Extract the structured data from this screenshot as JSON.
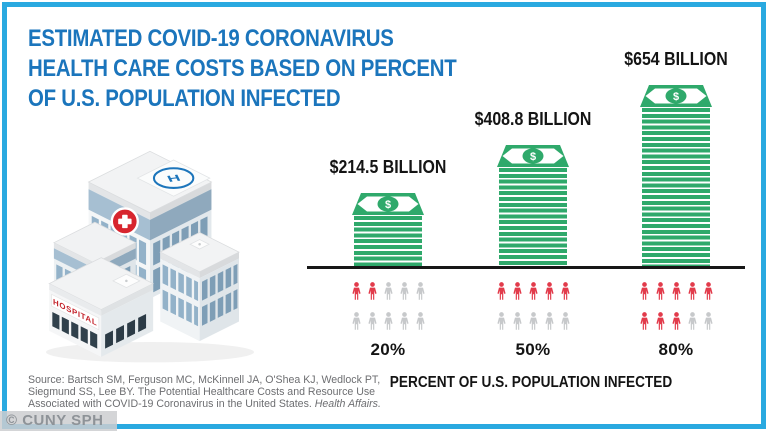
{
  "header": {
    "lines": [
      "ESTIMATED COVID-19 CORONAVIRUS",
      "HEALTH CARE COSTS BASED ON PERCENT",
      "OF U.S. POPULATION INFECTED"
    ]
  },
  "chart_data": {
    "type": "bar",
    "title": "ESTIMATED COVID-19 CORONAVIRUS HEALTH CARE COSTS BASED ON PERCENT OF U.S. POPULATION INFECTED",
    "xlabel": "PERCENT OF U.S. POPULATION INFECTED",
    "unit": "USD billions",
    "categories": [
      "20%",
      "50%",
      "80%"
    ],
    "values": [
      214.5,
      408.8,
      654
    ],
    "bar_labels": [
      "$214.5 BILLION",
      "$408.8 BILLION",
      "$654 BILLION"
    ],
    "pictogram": {
      "total_per_group": 10,
      "infected_counts": [
        2,
        5,
        8
      ],
      "rows": 2,
      "per_row": 5
    },
    "money_symbol": "$",
    "grid": false,
    "legend_position": "none"
  },
  "hospital": {
    "sign_text": "HOSPITAL",
    "helipad_letter": "H"
  },
  "source": {
    "line1": "Source: Bartsch SM, Ferguson MC, McKinnell JA, O'Shea KJ, Wedlock PT,",
    "line2": "Siegmund SS, Lee BY. The Potential Healthcare Costs and Resource Use",
    "line3": "Associated with COVID-19 Coronavirus in the United States.",
    "journal": "Health Affairs."
  },
  "watermark": "© CUNY SPH",
  "colors": {
    "frame_cyan": "#2AA9E0",
    "title_blue": "#1B75BC",
    "money_green": "#2FA96B",
    "infected_red": "#E23B4B",
    "uninfected_gray": "#C7C9CB",
    "text_dark": "#141414",
    "source_gray": "#6D6E71",
    "watermark_gray": "#8E9398",
    "cross_red": "#D7252E",
    "helipad_blue": "#1C75BB"
  }
}
